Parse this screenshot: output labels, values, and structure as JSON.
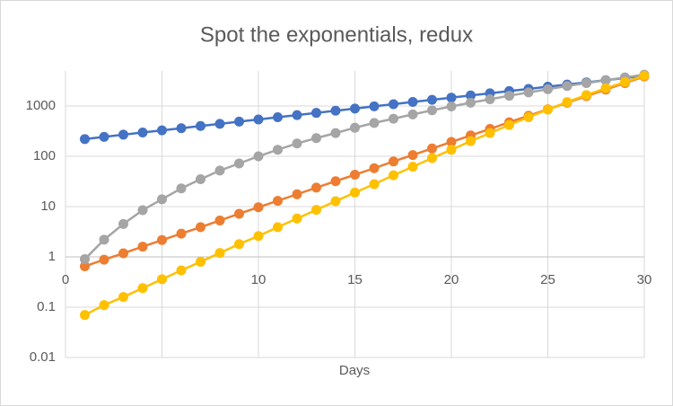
{
  "chart_data": {
    "type": "line",
    "title": "Spot the exponentials, redux",
    "x_label": "Days",
    "x": [
      1,
      2,
      3,
      4,
      5,
      6,
      7,
      8,
      9,
      10,
      11,
      12,
      13,
      14,
      15,
      16,
      17,
      18,
      19,
      20,
      21,
      22,
      23,
      24,
      25,
      26,
      27,
      28,
      29,
      30
    ],
    "series": [
      {
        "color": "#4472c4",
        "values": [
          220,
          243,
          269,
          297,
          328,
          362,
          400,
          442,
          489,
          540,
          597,
          659,
          729,
          805,
          890,
          983,
          1087,
          1201,
          1327,
          1466,
          1620,
          1790,
          1978,
          2186,
          2416,
          2669,
          2950,
          3259,
          3602,
          3980
        ]
      },
      {
        "color": "#ed7d31",
        "values": [
          0.65,
          0.88,
          1.18,
          1.6,
          2.16,
          2.9,
          3.9,
          5.3,
          7.2,
          9.7,
          13,
          17.6,
          23.8,
          32,
          43,
          58,
          79,
          106,
          143,
          193,
          260,
          350,
          475,
          640,
          860,
          1160,
          1570,
          2120,
          2860,
          3860
        ]
      },
      {
        "color": "#a5a5a5",
        "values": [
          0.9,
          2.2,
          4.5,
          8.5,
          14,
          23,
          35,
          52,
          72,
          100,
          135,
          180,
          230,
          290,
          370,
          460,
          560,
          680,
          820,
          980,
          1160,
          1360,
          1600,
          1860,
          2150,
          2500,
          2850,
          3250,
          3700,
          4200
        ]
      },
      {
        "color": "#ffc000",
        "values": [
          0.07,
          0.11,
          0.16,
          0.24,
          0.36,
          0.54,
          0.8,
          1.2,
          1.8,
          2.6,
          3.9,
          5.8,
          8.6,
          12.8,
          19,
          28,
          42,
          62,
          92,
          135,
          200,
          290,
          420,
          600,
          850,
          1200,
          1650,
          2250,
          3000,
          4000
        ]
      }
    ],
    "xlim": [
      0,
      30
    ],
    "xticks": [
      0,
      5,
      10,
      15,
      20,
      25,
      30
    ],
    "ylim": [
      0.01,
      5000
    ],
    "yticks": [
      0.01,
      0.1,
      1,
      10,
      100,
      1000
    ],
    "log_y": true,
    "grid": true
  }
}
